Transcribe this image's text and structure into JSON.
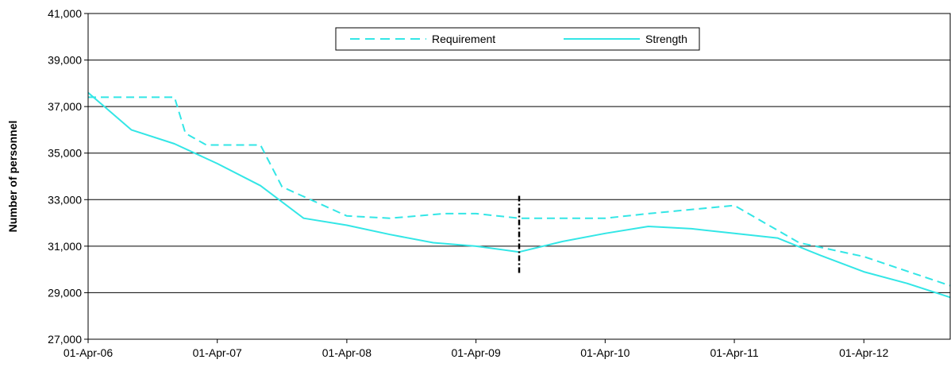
{
  "chart_data": {
    "type": "line",
    "ylabel": "Number of personnel",
    "xlabel": "",
    "ylim": [
      27000,
      41000
    ],
    "yticks": [
      27000,
      29000,
      31000,
      33000,
      35000,
      37000,
      39000,
      41000
    ],
    "ytick_labels": [
      "27,000",
      "29,000",
      "31,000",
      "33,000",
      "35,000",
      "37,000",
      "39,000",
      "41,000"
    ],
    "xlim": [
      "2006-04-01",
      "2012-12-01"
    ],
    "xtick_labels": [
      {
        "date": "2006-04-01",
        "label": "01-Apr-06"
      },
      {
        "date": "2007-04-01",
        "label": "01-Apr-07"
      },
      {
        "date": "2008-04-01",
        "label": "01-Apr-08"
      },
      {
        "date": "2009-04-01",
        "label": "01-Apr-09"
      },
      {
        "date": "2010-04-01",
        "label": "01-Apr-10"
      },
      {
        "date": "2011-04-01",
        "label": "01-Apr-11"
      },
      {
        "date": "2012-04-01",
        "label": "01-Apr-12"
      }
    ],
    "grid": "horizontal",
    "legend_position": "top-center",
    "series": [
      {
        "name": "Requirement",
        "color": "#33E6E6",
        "style": "dashed",
        "points": [
          {
            "x": "2006-04-01",
            "y": 37400
          },
          {
            "x": "2006-12-01",
            "y": 37400
          },
          {
            "x": "2007-01-01",
            "y": 35850
          },
          {
            "x": "2007-03-01",
            "y": 35350
          },
          {
            "x": "2007-08-01",
            "y": 35350
          },
          {
            "x": "2007-10-01",
            "y": 33550
          },
          {
            "x": "2008-04-01",
            "y": 32300
          },
          {
            "x": "2008-08-01",
            "y": 32200
          },
          {
            "x": "2009-01-01",
            "y": 32400
          },
          {
            "x": "2009-04-01",
            "y": 32400
          },
          {
            "x": "2009-08-01",
            "y": 32200
          },
          {
            "x": "2010-04-01",
            "y": 32200
          },
          {
            "x": "2010-08-01",
            "y": 32400
          },
          {
            "x": "2011-04-01",
            "y": 32750
          },
          {
            "x": "2011-10-01",
            "y": 31150
          },
          {
            "x": "2012-04-01",
            "y": 30550
          },
          {
            "x": "2012-12-01",
            "y": 29300
          }
        ]
      },
      {
        "name": "Strength",
        "color": "#33E6E6",
        "style": "solid",
        "points": [
          {
            "x": "2006-04-01",
            "y": 37600
          },
          {
            "x": "2006-08-01",
            "y": 36000
          },
          {
            "x": "2006-12-01",
            "y": 35400
          },
          {
            "x": "2007-04-01",
            "y": 34550
          },
          {
            "x": "2007-08-01",
            "y": 33600
          },
          {
            "x": "2007-12-01",
            "y": 32200
          },
          {
            "x": "2008-04-01",
            "y": 31900
          },
          {
            "x": "2008-08-01",
            "y": 31500
          },
          {
            "x": "2008-12-01",
            "y": 31150
          },
          {
            "x": "2009-04-01",
            "y": 31000
          },
          {
            "x": "2009-08-01",
            "y": 30750
          },
          {
            "x": "2009-12-01",
            "y": 31200
          },
          {
            "x": "2010-04-01",
            "y": 31550
          },
          {
            "x": "2010-08-01",
            "y": 31850
          },
          {
            "x": "2010-12-01",
            "y": 31750
          },
          {
            "x": "2011-04-01",
            "y": 31550
          },
          {
            "x": "2011-08-01",
            "y": 31350
          },
          {
            "x": "2011-12-01",
            "y": 30600
          },
          {
            "x": "2012-04-01",
            "y": 29900
          },
          {
            "x": "2012-08-01",
            "y": 29400
          },
          {
            "x": "2012-12-01",
            "y": 28800
          }
        ]
      }
    ],
    "annotations": [
      {
        "type": "vertical-dash-dot-line",
        "x": "2009-08-01",
        "y_from": 29850,
        "y_to": 33250,
        "color": "#000000"
      }
    ]
  }
}
